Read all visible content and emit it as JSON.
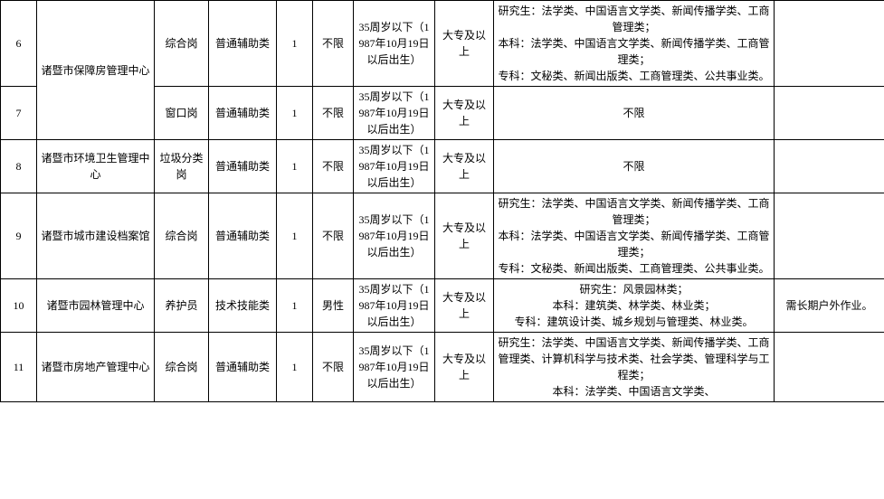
{
  "table": {
    "border_color": "#000000",
    "bg_color": "#ffffff",
    "font_size": 12,
    "rows": [
      {
        "id": "6",
        "org": "诸暨市保障房管理中心",
        "org_rowspan": 2,
        "post": "综合岗",
        "category": "普通辅助类",
        "count": "1",
        "gender": "不限",
        "age": "35周岁以下（1987年10月19日以后出生）",
        "edu": "大专及以上",
        "major": "研究生：法学类、中国语言文学类、新闻传播学类、工商管理类；\n本科：法学类、中国语言文学类、新闻传播学类、工商管理类；\n专科：文秘类、新闻出版类、工商管理类、公共事业类。",
        "note": ""
      },
      {
        "id": "7",
        "post": "窗口岗",
        "category": "普通辅助类",
        "count": "1",
        "gender": "不限",
        "age": "35周岁以下（1987年10月19日以后出生）",
        "edu": "大专及以上",
        "major": "不限",
        "major_center": true,
        "note": ""
      },
      {
        "id": "8",
        "org": "诸暨市环境卫生管理中心",
        "post": "垃圾分类岗",
        "category": "普通辅助类",
        "count": "1",
        "gender": "不限",
        "age": "35周岁以下（1987年10月19日以后出生）",
        "edu": "大专及以上",
        "major": "不限",
        "major_center": true,
        "note": ""
      },
      {
        "id": "9",
        "org": "诸暨市城市建设档案馆",
        "post": "综合岗",
        "category": "普通辅助类",
        "count": "1",
        "gender": "不限",
        "age": "35周岁以下（1987年10月19日以后出生）",
        "edu": "大专及以上",
        "major": "研究生：法学类、中国语言文学类、新闻传播学类、工商管理类；\n本科：法学类、中国语言文学类、新闻传播学类、工商管理类；\n专科：文秘类、新闻出版类、工商管理类、公共事业类。",
        "note": ""
      },
      {
        "id": "10",
        "org": "诸暨市园林管理中心",
        "post": "养护员",
        "category": "技术技能类",
        "count": "1",
        "gender": "男性",
        "age": "35周岁以下（1987年10月19日以后出生）",
        "edu": "大专及以上",
        "major": "研究生：风景园林类；\n本科：建筑类、林学类、林业类；\n专科：建筑设计类、城乡规划与管理类、林业类。",
        "note": "需长期户外作业。"
      },
      {
        "id": "11",
        "org": "诸暨市房地产管理中心",
        "post": "综合岗",
        "category": "普通辅助类",
        "count": "1",
        "gender": "不限",
        "age": "35周岁以下（1987年10月19日以后出生）",
        "edu": "大专及以上",
        "major": "研究生：法学类、中国语言文学类、新闻传播学类、工商管理类、计算机科学与技术类、社会学类、管理科学与工程类；\n本科：法学类、中国语言文学类、",
        "note": ""
      }
    ]
  }
}
